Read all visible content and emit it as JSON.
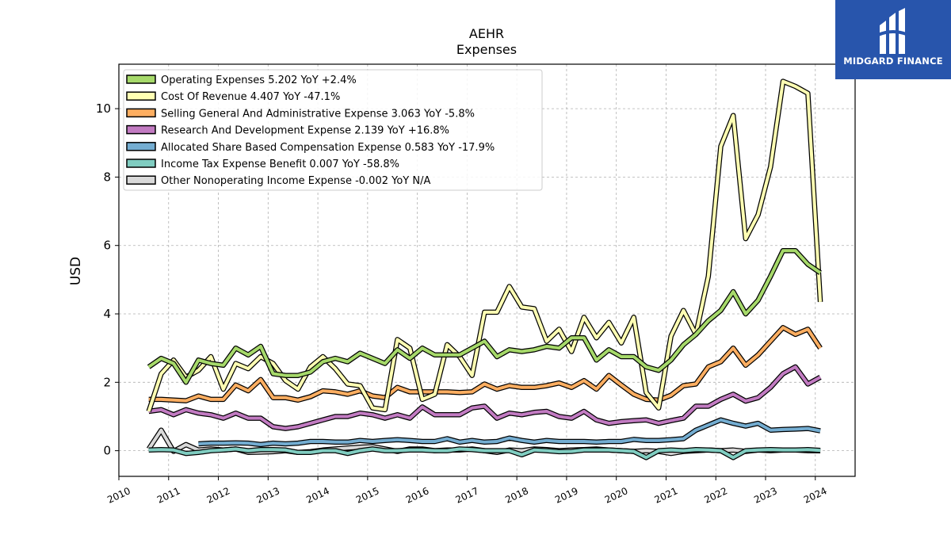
{
  "brand": {
    "name": "MIDGARD FINANCE",
    "bg": "#2855ac"
  },
  "chart_data": {
    "type": "line",
    "title": "AEHR",
    "subtitle": "Expenses",
    "ylabel": "USD",
    "xlabel": "",
    "grid": true,
    "legend_position": "top-left",
    "xlim": [
      2010,
      2024.8
    ],
    "ylim": [
      -0.75,
      11.3
    ],
    "x_ticks": [
      2010,
      2011,
      2012,
      2013,
      2014,
      2015,
      2016,
      2017,
      2018,
      2019,
      2020,
      2021,
      2022,
      2023,
      2024
    ],
    "y_ticks": [
      0,
      2,
      4,
      6,
      8,
      10
    ],
    "x": [
      2010.6,
      2010.85,
      2011.1,
      2011.35,
      2011.6,
      2011.85,
      2012.1,
      2012.35,
      2012.6,
      2012.85,
      2013.1,
      2013.35,
      2013.6,
      2013.85,
      2014.1,
      2014.35,
      2014.6,
      2014.85,
      2015.1,
      2015.35,
      2015.6,
      2015.85,
      2016.1,
      2016.35,
      2016.6,
      2016.85,
      2017.1,
      2017.35,
      2017.6,
      2017.85,
      2018.1,
      2018.35,
      2018.6,
      2018.85,
      2019.1,
      2019.35,
      2019.6,
      2019.85,
      2020.1,
      2020.35,
      2020.6,
      2020.85,
      2021.1,
      2021.35,
      2021.6,
      2021.85,
      2022.1,
      2022.35,
      2022.6,
      2022.85,
      2023.1,
      2023.35,
      2023.6,
      2023.85,
      2024.1
    ],
    "series": [
      {
        "name": "Operating Expenses",
        "legend": "Operating Expenses  5.202 YoY +2.4%",
        "color": "#a6d96a",
        "values": [
          2.45,
          2.7,
          2.55,
          2.0,
          2.65,
          2.55,
          2.5,
          3.0,
          2.8,
          3.05,
          2.25,
          2.2,
          2.2,
          2.3,
          2.6,
          2.7,
          2.6,
          2.85,
          2.7,
          2.55,
          2.95,
          2.7,
          3.0,
          2.8,
          2.8,
          2.8,
          3.0,
          3.2,
          2.75,
          2.95,
          2.9,
          2.95,
          3.05,
          3.0,
          3.3,
          3.3,
          2.65,
          2.95,
          2.75,
          2.75,
          2.45,
          2.35,
          2.65,
          3.1,
          3.4,
          3.8,
          4.1,
          4.65,
          4.0,
          4.4,
          5.1,
          5.85,
          5.85,
          5.45,
          5.2
        ]
      },
      {
        "name": "Cost Of Revenue",
        "legend": "Cost Of Revenue  4.407 YoY -47.1%",
        "color": "#ffffb3",
        "values": [
          1.15,
          2.25,
          2.65,
          2.15,
          2.35,
          2.75,
          1.8,
          2.55,
          2.4,
          2.75,
          2.55,
          2.05,
          1.8,
          2.45,
          2.75,
          2.4,
          1.95,
          1.9,
          1.25,
          1.2,
          3.25,
          3.0,
          1.5,
          1.65,
          3.1,
          2.75,
          2.2,
          4.05,
          4.05,
          4.8,
          4.2,
          4.15,
          3.2,
          3.55,
          2.9,
          3.9,
          3.3,
          3.75,
          3.15,
          3.9,
          1.7,
          1.25,
          3.35,
          4.1,
          3.4,
          5.1,
          8.9,
          9.8,
          6.2,
          6.9,
          8.3,
          10.8,
          10.65,
          10.45,
          4.35
        ]
      },
      {
        "name": "Selling General And Administrative Expense",
        "legend": "Selling General And Administrative Expense  3.063 YoY -5.8%",
        "color": "#fdae61",
        "values": [
          1.5,
          1.5,
          1.48,
          1.46,
          1.6,
          1.5,
          1.5,
          1.92,
          1.75,
          2.08,
          1.55,
          1.55,
          1.48,
          1.58,
          1.75,
          1.72,
          1.65,
          1.75,
          1.6,
          1.55,
          1.85,
          1.72,
          1.72,
          1.72,
          1.72,
          1.7,
          1.72,
          1.95,
          1.8,
          1.9,
          1.85,
          1.85,
          1.9,
          1.98,
          1.85,
          2.05,
          1.8,
          2.2,
          1.92,
          1.65,
          1.5,
          1.48,
          1.62,
          1.9,
          1.95,
          2.45,
          2.6,
          3.0,
          2.5,
          2.8,
          3.2,
          3.6,
          3.4,
          3.55,
          3.0
        ]
      },
      {
        "name": "Research And Development Expense",
        "legend": "Research And Development Expense  2.139 YoY +16.8%",
        "color": "#c27bc2",
        "values": [
          1.15,
          1.2,
          1.05,
          1.2,
          1.1,
          1.05,
          0.95,
          1.1,
          0.95,
          0.95,
          0.7,
          0.65,
          0.7,
          0.8,
          0.9,
          1.0,
          1.0,
          1.1,
          1.05,
          0.95,
          1.05,
          0.95,
          1.28,
          1.05,
          1.05,
          1.05,
          1.25,
          1.3,
          0.95,
          1.1,
          1.05,
          1.12,
          1.15,
          1.0,
          0.95,
          1.15,
          0.9,
          0.8,
          0.85,
          0.88,
          0.9,
          0.8,
          0.88,
          0.95,
          1.3,
          1.3,
          1.5,
          1.65,
          1.45,
          1.55,
          1.85,
          2.25,
          2.45,
          1.95,
          2.15
        ]
      },
      {
        "name": "Allocated Share Based Compensation Expense",
        "legend": "Allocated Share Based Compensation Expense  0.583 YoY -17.9%",
        "color": "#74add1",
        "values": [
          null,
          null,
          null,
          null,
          0.2,
          0.22,
          0.22,
          0.23,
          0.22,
          0.18,
          0.22,
          0.2,
          0.22,
          0.27,
          0.27,
          0.25,
          0.25,
          0.3,
          0.27,
          0.3,
          0.32,
          0.3,
          0.27,
          0.27,
          0.35,
          0.25,
          0.3,
          0.25,
          0.27,
          0.37,
          0.3,
          0.25,
          0.3,
          0.27,
          0.27,
          0.27,
          0.25,
          0.27,
          0.27,
          0.33,
          0.3,
          0.3,
          0.32,
          0.35,
          0.6,
          0.75,
          0.9,
          0.8,
          0.72,
          0.8,
          0.6,
          0.62,
          0.63,
          0.65,
          0.58
        ]
      },
      {
        "name": "Income Tax Expense Benefit",
        "legend": "Income Tax Expense Benefit  0.007 YoY -58.8%",
        "color": "#80cdc1",
        "values": [
          0.02,
          0.03,
          0.02,
          -0.08,
          -0.05,
          0.0,
          0.02,
          0.05,
          0.0,
          0.03,
          0.03,
          0.02,
          -0.05,
          -0.05,
          0.0,
          0.0,
          -0.08,
          0.0,
          0.05,
          0.0,
          0.0,
          0.02,
          0.02,
          0.0,
          0.0,
          0.05,
          0.03,
          0.0,
          0.0,
          0.0,
          -0.12,
          0.02,
          0.0,
          -0.03,
          -0.02,
          0.02,
          0.02,
          0.02,
          0.0,
          -0.02,
          -0.2,
          0.0,
          0.02,
          0.0,
          0.03,
          0.02,
          0.0,
          -0.2,
          0.0,
          0.02,
          0.03,
          0.02,
          0.02,
          0.03,
          0.01
        ]
      },
      {
        "name": "Other Nonoperating Income Expense",
        "legend": "Other Nonoperating Income Expense  -0.002 YoY N/A",
        "color": "#d9d9d9",
        "values": [
          0.05,
          0.6,
          -0.02,
          0.18,
          0.02,
          0.05,
          0.02,
          0.05,
          -0.05,
          -0.04,
          -0.03,
          0.0,
          -0.05,
          -0.03,
          0.02,
          0.05,
          0.08,
          0.1,
          0.12,
          0.05,
          -0.02,
          0.05,
          0.05,
          0.0,
          0.02,
          0.02,
          0.05,
          0.0,
          -0.05,
          0.02,
          0.0,
          0.05,
          0.03,
          0.0,
          0.02,
          0.03,
          0.05,
          0.02,
          0.0,
          -0.02,
          0.0,
          -0.02,
          -0.08,
          -0.02,
          0.0,
          0.02,
          0.0,
          0.02,
          -0.02,
          0.02,
          0.0,
          0.02,
          0.02,
          0.0,
          -0.002
        ]
      }
    ]
  }
}
